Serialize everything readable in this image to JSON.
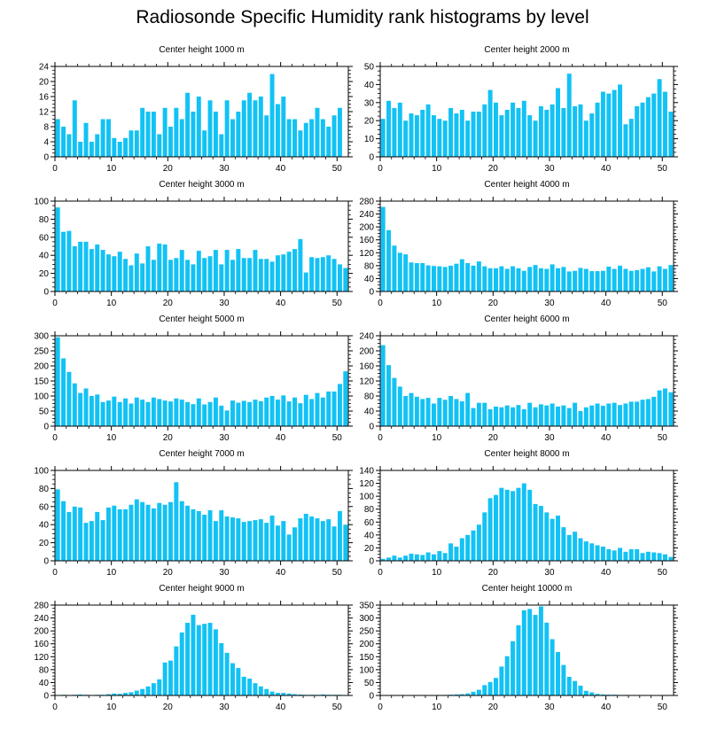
{
  "title": "Radiosonde Specific Humidity rank histograms by level",
  "colors": {
    "bar": "#12c2f4",
    "axis": "#000000"
  },
  "chart_data": [
    {
      "type": "bar",
      "title": "Center height 1000 m",
      "x": [
        0,
        1,
        2,
        3,
        4,
        5,
        6,
        7,
        8,
        9,
        10,
        11,
        12,
        13,
        14,
        15,
        16,
        17,
        18,
        19,
        20,
        21,
        22,
        23,
        24,
        25,
        26,
        27,
        28,
        29,
        30,
        31,
        32,
        33,
        34,
        35,
        36,
        37,
        38,
        39,
        40,
        41,
        42,
        43,
        44,
        45,
        46,
        47,
        48,
        49,
        50,
        51
      ],
      "values": [
        10,
        8,
        6,
        15,
        4,
        9,
        4,
        6,
        10,
        10,
        5,
        4,
        5,
        7,
        7,
        13,
        12,
        12,
        6,
        13,
        8,
        13,
        10,
        17,
        12,
        16,
        7,
        15,
        12,
        6,
        15,
        10,
        12,
        15,
        17,
        15,
        16,
        11,
        22,
        14,
        16,
        10,
        10,
        7,
        9,
        10,
        13,
        10,
        8,
        11,
        13,
        0
      ],
      "xlim": [
        0,
        52
      ],
      "ylim": [
        0,
        24
      ],
      "xticks": [
        0,
        10,
        20,
        30,
        40,
        50
      ],
      "yticks": [
        0,
        4,
        8,
        12,
        16,
        20,
        24
      ],
      "xlabel": "",
      "ylabel": ""
    },
    {
      "type": "bar",
      "title": "Center height 2000 m",
      "x": [
        0,
        1,
        2,
        3,
        4,
        5,
        6,
        7,
        8,
        9,
        10,
        11,
        12,
        13,
        14,
        15,
        16,
        17,
        18,
        19,
        20,
        21,
        22,
        23,
        24,
        25,
        26,
        27,
        28,
        29,
        30,
        31,
        32,
        33,
        34,
        35,
        36,
        37,
        38,
        39,
        40,
        41,
        42,
        43,
        44,
        45,
        46,
        47,
        48,
        49,
        50,
        51
      ],
      "values": [
        21,
        31,
        27,
        30,
        20,
        24,
        23,
        26,
        29,
        23,
        21,
        20,
        27,
        24,
        26,
        20,
        25,
        25,
        29,
        37,
        30,
        23,
        26,
        30,
        27,
        31,
        23,
        20,
        28,
        26,
        29,
        38,
        27,
        46,
        28,
        29,
        20,
        24,
        30,
        36,
        35,
        37,
        40,
        18,
        21,
        28,
        30,
        33,
        35,
        43,
        36,
        25
      ],
      "xlim": [
        0,
        52
      ],
      "ylim": [
        0,
        50
      ],
      "xticks": [
        0,
        10,
        20,
        30,
        40,
        50
      ],
      "yticks": [
        0,
        10,
        20,
        30,
        40,
        50
      ],
      "xlabel": "",
      "ylabel": ""
    },
    {
      "type": "bar",
      "title": "Center height 3000 m",
      "x": [
        0,
        1,
        2,
        3,
        4,
        5,
        6,
        7,
        8,
        9,
        10,
        11,
        12,
        13,
        14,
        15,
        16,
        17,
        18,
        19,
        20,
        21,
        22,
        23,
        24,
        25,
        26,
        27,
        28,
        29,
        30,
        31,
        32,
        33,
        34,
        35,
        36,
        37,
        38,
        39,
        40,
        41,
        42,
        43,
        44,
        45,
        46,
        47,
        48,
        49,
        50,
        51
      ],
      "values": [
        93,
        66,
        67,
        50,
        55,
        55,
        47,
        52,
        46,
        41,
        39,
        44,
        36,
        29,
        42,
        31,
        50,
        35,
        53,
        52,
        35,
        37,
        46,
        35,
        30,
        45,
        37,
        39,
        46,
        30,
        46,
        35,
        47,
        37,
        37,
        46,
        36,
        36,
        33,
        40,
        41,
        44,
        47,
        58,
        21,
        38,
        37,
        38,
        40,
        36,
        30,
        26
      ],
      "xlim": [
        0,
        52
      ],
      "ylim": [
        0,
        100
      ],
      "xticks": [
        0,
        10,
        20,
        30,
        40,
        50
      ],
      "yticks": [
        0,
        20,
        40,
        60,
        80,
        100
      ],
      "xlabel": "",
      "ylabel": ""
    },
    {
      "type": "bar",
      "title": "Center height 4000 m",
      "x": [
        0,
        1,
        2,
        3,
        4,
        5,
        6,
        7,
        8,
        9,
        10,
        11,
        12,
        13,
        14,
        15,
        16,
        17,
        18,
        19,
        20,
        21,
        22,
        23,
        24,
        25,
        26,
        27,
        28,
        29,
        30,
        31,
        32,
        33,
        34,
        35,
        36,
        37,
        38,
        39,
        40,
        41,
        42,
        43,
        44,
        45,
        46,
        47,
        48,
        49,
        50,
        51
      ],
      "values": [
        262,
        190,
        142,
        120,
        115,
        90,
        88,
        88,
        81,
        79,
        78,
        76,
        80,
        86,
        100,
        88,
        80,
        93,
        78,
        72,
        72,
        78,
        70,
        78,
        72,
        64,
        76,
        82,
        72,
        70,
        84,
        72,
        76,
        62,
        64,
        73,
        70,
        63,
        63,
        64,
        77,
        70,
        80,
        70,
        64,
        66,
        70,
        75,
        62,
        78,
        70,
        82
      ],
      "xlim": [
        0,
        52
      ],
      "ylim": [
        0,
        280
      ],
      "xticks": [
        0,
        10,
        20,
        30,
        40,
        50
      ],
      "yticks": [
        0,
        40,
        80,
        120,
        160,
        200,
        240,
        280
      ],
      "xlabel": "",
      "ylabel": ""
    },
    {
      "type": "bar",
      "title": "Center height 5000 m",
      "x": [
        0,
        1,
        2,
        3,
        4,
        5,
        6,
        7,
        8,
        9,
        10,
        11,
        12,
        13,
        14,
        15,
        16,
        17,
        18,
        19,
        20,
        21,
        22,
        23,
        24,
        25,
        26,
        27,
        28,
        29,
        30,
        31,
        32,
        33,
        34,
        35,
        36,
        37,
        38,
        39,
        40,
        41,
        42,
        43,
        44,
        45,
        46,
        47,
        48,
        49,
        50,
        51
      ],
      "values": [
        295,
        225,
        180,
        142,
        110,
        125,
        100,
        105,
        80,
        85,
        98,
        80,
        92,
        75,
        95,
        88,
        80,
        95,
        90,
        85,
        82,
        92,
        88,
        80,
        73,
        92,
        72,
        80,
        95,
        68,
        52,
        85,
        78,
        84,
        80,
        88,
        83,
        95,
        100,
        88,
        102,
        82,
        95,
        76,
        104,
        90,
        110,
        95,
        115,
        115,
        140,
        182
      ],
      "xlim": [
        0,
        52
      ],
      "ylim": [
        0,
        300
      ],
      "xticks": [
        0,
        10,
        20,
        30,
        40,
        50
      ],
      "yticks": [
        0,
        50,
        100,
        150,
        200,
        250,
        300
      ],
      "xlabel": "",
      "ylabel": ""
    },
    {
      "type": "bar",
      "title": "Center height 6000 m",
      "x": [
        0,
        1,
        2,
        3,
        4,
        5,
        6,
        7,
        8,
        9,
        10,
        11,
        12,
        13,
        14,
        15,
        16,
        17,
        18,
        19,
        20,
        21,
        22,
        23,
        24,
        25,
        26,
        27,
        28,
        29,
        30,
        31,
        32,
        33,
        34,
        35,
        36,
        37,
        38,
        39,
        40,
        41,
        42,
        43,
        44,
        45,
        46,
        47,
        48,
        49,
        50,
        51
      ],
      "values": [
        215,
        162,
        128,
        105,
        80,
        88,
        78,
        72,
        75,
        60,
        75,
        70,
        80,
        72,
        66,
        88,
        48,
        62,
        62,
        45,
        52,
        50,
        55,
        50,
        56,
        45,
        62,
        50,
        58,
        55,
        60,
        52,
        55,
        48,
        62,
        40,
        50,
        55,
        60,
        54,
        60,
        62,
        56,
        60,
        65,
        65,
        70,
        72,
        78,
        95,
        100,
        90
      ],
      "xlim": [
        0,
        52
      ],
      "ylim": [
        0,
        240
      ],
      "xticks": [
        0,
        10,
        20,
        30,
        40,
        50
      ],
      "yticks": [
        0,
        40,
        80,
        120,
        160,
        200,
        240
      ],
      "xlabel": "",
      "ylabel": ""
    },
    {
      "type": "bar",
      "title": "Center height 7000 m",
      "x": [
        0,
        1,
        2,
        3,
        4,
        5,
        6,
        7,
        8,
        9,
        10,
        11,
        12,
        13,
        14,
        15,
        16,
        17,
        18,
        19,
        20,
        21,
        22,
        23,
        24,
        25,
        26,
        27,
        28,
        29,
        30,
        31,
        32,
        33,
        34,
        35,
        36,
        37,
        38,
        39,
        40,
        41,
        42,
        43,
        44,
        45,
        46,
        47,
        48,
        49,
        50,
        51
      ],
      "values": [
        79,
        66,
        54,
        60,
        59,
        42,
        44,
        54,
        45,
        59,
        61,
        57,
        57,
        62,
        68,
        65,
        62,
        58,
        64,
        62,
        65,
        87,
        66,
        61,
        57,
        55,
        51,
        56,
        44,
        56,
        49,
        48,
        47,
        43,
        44,
        45,
        46,
        42,
        50,
        39,
        44,
        29,
        37,
        47,
        52,
        49,
        47,
        44,
        46,
        38,
        55,
        40
      ],
      "xlim": [
        0,
        52
      ],
      "ylim": [
        0,
        100
      ],
      "xticks": [
        0,
        10,
        20,
        30,
        40,
        50
      ],
      "yticks": [
        0,
        20,
        40,
        60,
        80,
        100
      ],
      "xlabel": "",
      "ylabel": ""
    },
    {
      "type": "bar",
      "title": "Center height 8000 m",
      "x": [
        0,
        1,
        2,
        3,
        4,
        5,
        6,
        7,
        8,
        9,
        10,
        11,
        12,
        13,
        14,
        15,
        16,
        17,
        18,
        19,
        20,
        21,
        22,
        23,
        24,
        25,
        26,
        27,
        28,
        29,
        30,
        31,
        32,
        33,
        34,
        35,
        36,
        37,
        38,
        39,
        40,
        41,
        42,
        43,
        44,
        45,
        46,
        47,
        48,
        49,
        50,
        51
      ],
      "values": [
        3,
        5,
        8,
        5,
        8,
        11,
        10,
        9,
        13,
        10,
        15,
        12,
        27,
        22,
        35,
        40,
        47,
        56,
        75,
        97,
        102,
        113,
        110,
        108,
        113,
        120,
        110,
        88,
        85,
        75,
        65,
        70,
        52,
        40,
        45,
        35,
        30,
        27,
        24,
        22,
        18,
        16,
        20,
        14,
        18,
        18,
        12,
        14,
        13,
        12,
        10,
        6
      ],
      "xlim": [
        0,
        52
      ],
      "ylim": [
        0,
        140
      ],
      "xticks": [
        0,
        10,
        20,
        30,
        40,
        50
      ],
      "yticks": [
        0,
        20,
        40,
        60,
        80,
        100,
        120,
        140
      ],
      "xlabel": "",
      "ylabel": ""
    },
    {
      "type": "bar",
      "title": "Center height 9000 m",
      "x": [
        0,
        1,
        2,
        3,
        4,
        5,
        6,
        7,
        8,
        9,
        10,
        11,
        12,
        13,
        14,
        15,
        16,
        17,
        18,
        19,
        20,
        21,
        22,
        23,
        24,
        25,
        26,
        27,
        28,
        29,
        30,
        31,
        32,
        33,
        34,
        35,
        36,
        37,
        38,
        39,
        40,
        41,
        42,
        43,
        44,
        45,
        46,
        47,
        48,
        49,
        50,
        51
      ],
      "values": [
        1,
        2,
        1,
        2,
        3,
        2,
        1,
        2,
        2,
        4,
        6,
        5,
        8,
        10,
        15,
        20,
        28,
        38,
        50,
        102,
        108,
        152,
        195,
        225,
        250,
        218,
        222,
        225,
        205,
        162,
        132,
        100,
        85,
        58,
        52,
        38,
        28,
        20,
        12,
        8,
        8,
        6,
        4,
        3,
        2,
        2,
        2,
        3,
        2,
        2,
        2,
        1
      ],
      "xlim": [
        0,
        52
      ],
      "ylim": [
        0,
        280
      ],
      "xticks": [
        0,
        10,
        20,
        30,
        40,
        50
      ],
      "yticks": [
        0,
        40,
        80,
        120,
        160,
        200,
        240,
        280
      ],
      "xlabel": "",
      "ylabel": ""
    },
    {
      "type": "bar",
      "title": "Center height 10000 m",
      "x": [
        0,
        1,
        2,
        3,
        4,
        5,
        6,
        7,
        8,
        9,
        10,
        11,
        12,
        13,
        14,
        15,
        16,
        17,
        18,
        19,
        20,
        21,
        22,
        23,
        24,
        25,
        26,
        27,
        28,
        29,
        30,
        31,
        32,
        33,
        34,
        35,
        36,
        37,
        38,
        39,
        40,
        41,
        42,
        43,
        44,
        45,
        46,
        47,
        48,
        49,
        50,
        51
      ],
      "values": [
        1,
        1,
        1,
        1,
        1,
        1,
        1,
        1,
        1,
        1,
        2,
        2,
        3,
        4,
        5,
        8,
        14,
        22,
        40,
        52,
        68,
        112,
        152,
        210,
        272,
        330,
        335,
        312,
        345,
        282,
        218,
        168,
        118,
        72,
        56,
        38,
        18,
        12,
        6,
        4,
        3,
        3,
        2,
        2,
        1,
        1,
        1,
        1,
        1,
        1,
        1,
        1
      ],
      "xlim": [
        0,
        52
      ],
      "ylim": [
        0,
        350
      ],
      "xticks": [
        0,
        10,
        20,
        30,
        40,
        50
      ],
      "yticks": [
        0,
        50,
        100,
        150,
        200,
        250,
        300,
        350
      ],
      "xlabel": "",
      "ylabel": ""
    }
  ]
}
